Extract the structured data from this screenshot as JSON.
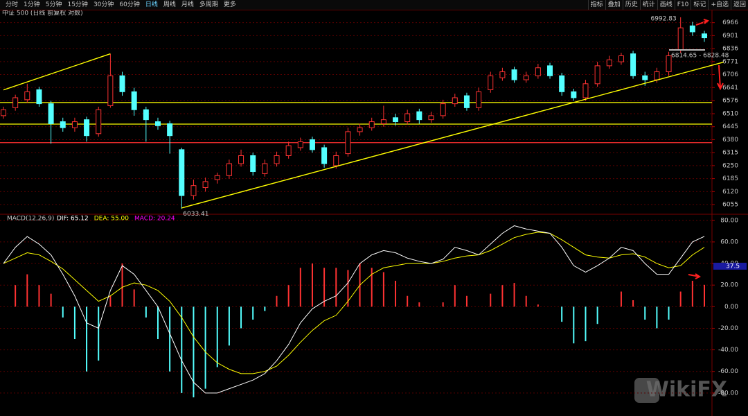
{
  "toolbar": {
    "tabs": [
      "分时",
      "1分钟",
      "5分钟",
      "15分钟",
      "30分钟",
      "60分钟",
      "日线",
      "周线",
      "月线",
      "多周期",
      "更多"
    ],
    "tools": [
      "指标",
      "叠加",
      "历史",
      "统计",
      "画线",
      "F10",
      "标记",
      "+自选",
      "返回"
    ]
  },
  "watermark": "WikiFX",
  "chart_data": [
    {
      "type": "candlestick",
      "title": "中证 500 (日线 前复权 对数)",
      "open": [
        6500,
        6540,
        6580,
        6630,
        6560,
        6470,
        6440,
        6480,
        6410,
        6550,
        6700,
        6620,
        6530,
        6470,
        6460,
        6330,
        6100,
        6140,
        6180,
        6200,
        6260,
        6300,
        6210,
        6260,
        6300,
        6340,
        6380,
        6340,
        6250,
        6310,
        6420,
        6440,
        6460,
        6490,
        6470,
        6520,
        6480,
        6500,
        6560,
        6600,
        6540,
        6630,
        6690,
        6730,
        6680,
        6700,
        6750,
        6700,
        6620,
        6590,
        6660,
        6750,
        6770,
        6810,
        6700,
        6680,
        6720,
        6830,
        6950,
        6910
      ],
      "high": [
        6545,
        6605,
        6660,
        6645,
        6575,
        6490,
        6490,
        6495,
        6545,
        6810,
        6720,
        6640,
        6545,
        6490,
        6475,
        6340,
        6180,
        6190,
        6215,
        6280,
        6330,
        6315,
        6280,
        6320,
        6370,
        6390,
        6395,
        6355,
        6320,
        6440,
        6460,
        6490,
        6550,
        6510,
        6530,
        6535,
        6520,
        6580,
        6610,
        6615,
        6640,
        6720,
        6740,
        6745,
        6720,
        6760,
        6765,
        6715,
        6635,
        6680,
        6770,
        6800,
        6815,
        6825,
        6720,
        6740,
        6820,
        6992.83,
        6970,
        6925
      ],
      "low": [
        6485,
        6525,
        6565,
        6545,
        6360,
        6420,
        6420,
        6370,
        6395,
        6540,
        6600,
        6500,
        6370,
        6430,
        6310,
        6033.41,
        6080,
        6120,
        6160,
        6185,
        6245,
        6200,
        6195,
        6245,
        6285,
        6325,
        6315,
        6240,
        6235,
        6295,
        6400,
        6425,
        6445,
        6450,
        6455,
        6460,
        6465,
        6485,
        6545,
        6525,
        6525,
        6615,
        6675,
        6665,
        6665,
        6685,
        6685,
        6600,
        6575,
        6575,
        6645,
        6735,
        6755,
        6685,
        6650,
        6665,
        6700,
        6815,
        6900,
        6870
      ],
      "close": [
        6530,
        6590,
        6620,
        6560,
        6460,
        6440,
        6470,
        6400,
        6530,
        6700,
        6620,
        6530,
        6480,
        6450,
        6400,
        6100,
        6150,
        6170,
        6200,
        6260,
        6300,
        6220,
        6260,
        6300,
        6350,
        6370,
        6330,
        6260,
        6300,
        6420,
        6440,
        6470,
        6480,
        6470,
        6510,
        6480,
        6500,
        6560,
        6590,
        6540,
        6620,
        6700,
        6720,
        6680,
        6700,
        6740,
        6700,
        6620,
        6590,
        6660,
        6750,
        6780,
        6800,
        6700,
        6680,
        6720,
        6800,
        6940,
        6920,
        6890
      ],
      "up_color": "#ff3232",
      "down_color": "#54ffff",
      "ylim": [
        6010,
        7010
      ],
      "yticks": [
        6966,
        6901,
        6836,
        6771,
        6706,
        6641,
        6576,
        6510,
        6445,
        6380,
        6315,
        6250,
        6185,
        6120,
        6055
      ],
      "grid": true,
      "hlines": [
        {
          "value": 6566,
          "color": "#ffff00"
        },
        {
          "value": 6458,
          "color": "#ffff00"
        },
        {
          "value": 6365,
          "color": "#ff3030"
        }
      ],
      "trendlines": [
        {
          "x": [
            0,
            9
          ],
          "y": [
            6629,
            6810
          ],
          "color": "#ffff00"
        },
        {
          "x": [
            15,
            60.6
          ],
          "y": [
            6038,
            6768
          ],
          "color": "#ffff00"
        }
      ],
      "annotations": [
        "6992.83",
        "6033.41",
        "6814.65 - 6828.48"
      ]
    },
    {
      "type": "macd",
      "title": "MACD(12,26,9)",
      "series": [
        {
          "name": "DIF: 65.12",
          "color": "#ffffff",
          "values": [
            40,
            55,
            65,
            58,
            48,
            30,
            10,
            -15,
            -20,
            15,
            38,
            30,
            15,
            0,
            -25,
            -50,
            -70,
            -80,
            -80,
            -76,
            -72,
            -68,
            -62,
            -50,
            -35,
            -15,
            -2,
            5,
            10,
            22,
            40,
            48,
            52,
            50,
            45,
            42,
            40,
            44,
            55,
            52,
            48,
            58,
            68,
            75,
            72,
            70,
            68,
            55,
            38,
            32,
            38,
            45,
            55,
            52,
            40,
            30,
            30,
            45,
            60,
            65.12
          ]
        },
        {
          "name": "DEA: 55.00",
          "color": "#ffff00",
          "values": [
            40,
            45,
            50,
            48,
            42,
            35,
            25,
            15,
            5,
            10,
            18,
            22,
            20,
            15,
            5,
            -10,
            -28,
            -42,
            -52,
            -58,
            -62,
            -62,
            -60,
            -55,
            -45,
            -33,
            -22,
            -13,
            -8,
            5,
            20,
            30,
            36,
            38,
            40,
            40,
            40,
            42,
            45,
            47,
            48,
            52,
            58,
            64,
            67,
            69,
            68,
            62,
            55,
            48,
            46,
            45,
            48,
            49,
            46,
            40,
            36,
            38,
            48,
            55.0
          ]
        },
        {
          "name": "MACD: 20.24",
          "color": "#ff00ff",
          "up_color": "#ff3232",
          "down_color": "#54ffff",
          "values": [
            0,
            20,
            30,
            20,
            12,
            -10,
            -30,
            -60,
            -50,
            10,
            40,
            16,
            -10,
            -30,
            -60,
            -80,
            -84,
            -76,
            -56,
            -36,
            -20,
            -12,
            -4,
            10,
            20,
            36,
            40,
            36,
            36,
            34,
            40,
            36,
            32,
            24,
            10,
            4,
            0,
            4,
            20,
            10,
            0,
            12,
            20,
            22,
            10,
            2,
            0,
            -14,
            -34,
            -32,
            -16,
            0,
            14,
            6,
            -12,
            -20,
            -12,
            14,
            24,
            20.24
          ]
        }
      ],
      "ylim": [
        -100,
        85
      ],
      "yticks": [
        {
          "value": 80,
          "label": "80.00"
        },
        {
          "value": 60,
          "label": "60.00"
        },
        {
          "value": 40,
          "label": "40.00"
        },
        {
          "value": 20,
          "label": "20.00"
        },
        {
          "value": 0,
          "label": "0.00"
        },
        {
          "value": -20,
          "label": "-20.00"
        },
        {
          "value": -40,
          "label": "-40.00"
        },
        {
          "value": -60,
          "label": "-60.00"
        },
        {
          "value": -80,
          "label": "-80.00"
        }
      ],
      "grid": true,
      "marker": {
        "value": 37.5,
        "label": "37.5"
      }
    }
  ]
}
